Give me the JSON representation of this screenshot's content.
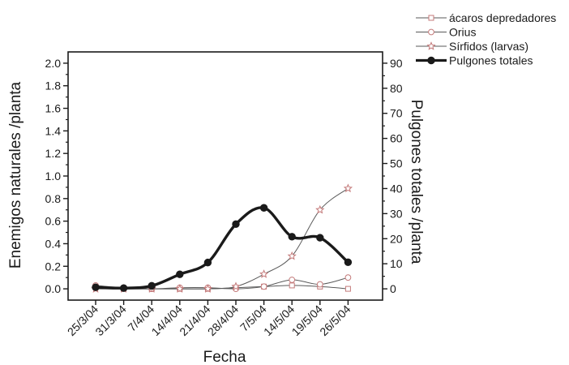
{
  "chart_data": {
    "type": "line",
    "title": "",
    "xlabel": "Fecha",
    "ylabel_left": "Enemigos naturales /planta",
    "ylabel_right": "Pulgones totales /planta",
    "categories": [
      "25/3/04",
      "31/3/04",
      "7/4/04",
      "14/4/04",
      "21/4/04",
      "28/4/04",
      "7/5/04",
      "14/5/04",
      "19/5/04",
      "26/5/04"
    ],
    "ylim_left": [
      -0.1,
      2.1
    ],
    "yticks_left": [
      0.0,
      0.2,
      0.4,
      0.6,
      0.8,
      1.0,
      1.2,
      1.4,
      1.6,
      1.8,
      2.0
    ],
    "ytick_labels_left": [
      "0.0",
      "0.2",
      "0.4",
      "0.6",
      "0.8",
      "1.0",
      "1.2",
      "1.4",
      "1.6",
      "1.8",
      "2.0"
    ],
    "ylim_right": [
      -4.5,
      94.5
    ],
    "yticks_right": [
      0,
      10,
      20,
      30,
      40,
      50,
      60,
      70,
      80,
      90
    ],
    "ytick_labels_right": [
      "0",
      "10",
      "20",
      "30",
      "40",
      "50",
      "60",
      "70",
      "80",
      "90"
    ],
    "legend_position": "top-right, outside plot",
    "series": [
      {
        "name": "ácaros depredadores",
        "axis": "left",
        "marker": "square",
        "values": [
          0.02,
          0.0,
          0.0,
          0.0,
          0.0,
          0.01,
          0.02,
          0.03,
          0.02,
          0.0
        ]
      },
      {
        "name": "Orius",
        "axis": "left",
        "marker": "circle-open",
        "values": [
          0.03,
          0.01,
          0.0,
          0.01,
          0.01,
          0.0,
          0.02,
          0.08,
          0.04,
          0.1
        ]
      },
      {
        "name": "Sírfidos (larvas)",
        "axis": "left",
        "marker": "star",
        "values": [
          0.0,
          0.0,
          0.0,
          0.0,
          0.0,
          0.02,
          0.13,
          0.29,
          0.7,
          0.89
        ]
      },
      {
        "name": "Pulgones totales",
        "axis": "right",
        "marker": "circle-filled",
        "values": [
          0.6,
          0.3,
          1.2,
          5.8,
          10.5,
          25.8,
          32.3,
          20.8,
          20.4,
          10.6
        ]
      }
    ],
    "colors": {
      "axis": "#1a1a1a",
      "series_light": "#5a5a5a",
      "series_bold": "#1a1a1a",
      "marker_pink": "#c47a7a"
    }
  }
}
